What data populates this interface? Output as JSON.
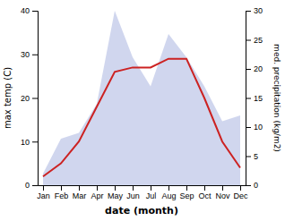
{
  "chart_data": {
    "type": "line",
    "categories": [
      "Jan",
      "Feb",
      "Mar",
      "Apr",
      "May",
      "Jun",
      "Jul",
      "Aug",
      "Sep",
      "Oct",
      "Nov",
      "Dec"
    ],
    "series": [
      {
        "type": "area",
        "color": "#aab4e0",
        "axis": "y2",
        "values": [
          2,
          8,
          9,
          14,
          30,
          22,
          17,
          26,
          22,
          17,
          11,
          12
        ]
      },
      {
        "type": "line",
        "color": "#cc2222",
        "values": [
          2,
          5,
          10,
          18,
          26,
          27,
          27,
          29,
          29,
          20,
          10,
          4
        ]
      }
    ],
    "xlabel": "date (month)",
    "ylabel": "max temp (C)",
    "y2label": "med. precipitation (kg/m2)",
    "ylim": [
      0,
      40
    ],
    "yticks": [
      0,
      10,
      20,
      30,
      40
    ],
    "y2lim": [
      0,
      30
    ],
    "y2ticks": [
      0,
      5,
      10,
      15,
      20,
      25,
      30
    ],
    "grid": false
  }
}
